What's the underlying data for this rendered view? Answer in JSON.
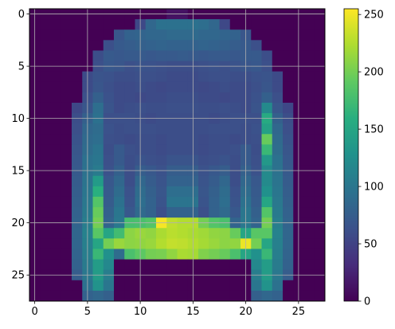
{
  "chart_data": {
    "type": "heatmap",
    "title": "",
    "xlabel": "",
    "ylabel": "",
    "colormap": "viridis",
    "grid": true,
    "x_ticks": [
      "0",
      "5",
      "10",
      "15",
      "20",
      "25"
    ],
    "y_ticks": [
      "0",
      "5",
      "10",
      "15",
      "20",
      "25"
    ],
    "colorbar": {
      "ticks": [
        "0",
        "50",
        "100",
        "150",
        "200",
        "250"
      ],
      "range": [
        0,
        255
      ]
    },
    "shape": [
      28,
      28
    ],
    "values": [
      [
        0,
        0,
        0,
        0,
        0,
        0,
        0,
        0,
        0,
        0,
        0,
        0,
        0,
        12,
        12,
        0,
        0,
        0,
        0,
        0,
        0,
        0,
        0,
        0,
        0,
        0,
        0,
        0
      ],
      [
        0,
        0,
        0,
        0,
        0,
        0,
        0,
        0,
        0,
        0,
        55,
        85,
        95,
        95,
        95,
        95,
        92,
        85,
        55,
        0,
        0,
        0,
        0,
        0,
        0,
        0,
        0,
        0
      ],
      [
        0,
        0,
        0,
        0,
        0,
        0,
        0,
        0,
        68,
        80,
        82,
        85,
        85,
        88,
        88,
        88,
        85,
        85,
        82,
        80,
        68,
        0,
        0,
        0,
        0,
        0,
        0,
        0
      ],
      [
        0,
        0,
        0,
        0,
        0,
        0,
        0,
        62,
        72,
        75,
        78,
        80,
        82,
        80,
        80,
        80,
        82,
        80,
        78,
        75,
        72,
        62,
        0,
        0,
        0,
        0,
        0,
        0
      ],
      [
        0,
        0,
        0,
        0,
        0,
        0,
        60,
        72,
        70,
        72,
        72,
        70,
        72,
        72,
        74,
        72,
        70,
        72,
        72,
        70,
        72,
        72,
        60,
        0,
        0,
        0,
        0,
        0
      ],
      [
        0,
        0,
        0,
        0,
        0,
        0,
        62,
        70,
        68,
        62,
        65,
        64,
        62,
        60,
        60,
        60,
        62,
        64,
        62,
        65,
        68,
        70,
        62,
        0,
        0,
        0,
        0,
        0
      ],
      [
        0,
        0,
        0,
        0,
        0,
        58,
        66,
        64,
        60,
        60,
        62,
        62,
        60,
        58,
        58,
        58,
        60,
        62,
        62,
        60,
        60,
        64,
        66,
        58,
        0,
        0,
        0,
        0
      ],
      [
        0,
        0,
        0,
        0,
        0,
        58,
        68,
        62,
        58,
        58,
        60,
        58,
        56,
        58,
        58,
        58,
        56,
        58,
        60,
        58,
        58,
        62,
        68,
        58,
        0,
        0,
        0,
        0
      ],
      [
        0,
        0,
        0,
        0,
        0,
        62,
        78,
        64,
        58,
        58,
        56,
        58,
        58,
        60,
        60,
        60,
        58,
        58,
        56,
        58,
        58,
        64,
        78,
        62,
        0,
        0,
        0,
        0
      ],
      [
        0,
        0,
        0,
        0,
        55,
        68,
        92,
        66,
        58,
        60,
        62,
        60,
        60,
        62,
        62,
        62,
        60,
        60,
        62,
        60,
        58,
        66,
        120,
        68,
        55,
        0,
        0,
        0
      ],
      [
        0,
        0,
        0,
        0,
        60,
        78,
        95,
        62,
        62,
        62,
        60,
        58,
        60,
        60,
        60,
        60,
        60,
        58,
        60,
        62,
        62,
        62,
        155,
        78,
        60,
        0,
        0,
        0
      ],
      [
        0,
        0,
        0,
        0,
        62,
        85,
        90,
        64,
        60,
        62,
        62,
        62,
        60,
        60,
        60,
        60,
        60,
        62,
        62,
        62,
        60,
        64,
        145,
        85,
        62,
        0,
        0,
        0
      ],
      [
        0,
        0,
        0,
        0,
        65,
        88,
        92,
        62,
        60,
        58,
        60,
        60,
        58,
        60,
        60,
        60,
        58,
        60,
        60,
        58,
        60,
        62,
        195,
        88,
        65,
        0,
        0,
        0
      ],
      [
        0,
        0,
        0,
        0,
        68,
        90,
        98,
        60,
        72,
        62,
        60,
        60,
        58,
        60,
        60,
        60,
        58,
        60,
        60,
        62,
        72,
        60,
        170,
        90,
        68,
        0,
        0,
        0
      ],
      [
        0,
        0,
        0,
        0,
        70,
        95,
        100,
        62,
        72,
        60,
        65,
        62,
        60,
        66,
        66,
        66,
        60,
        62,
        65,
        60,
        72,
        62,
        135,
        95,
        70,
        0,
        0,
        0
      ],
      [
        0,
        0,
        0,
        0,
        72,
        96,
        105,
        64,
        78,
        60,
        75,
        70,
        64,
        75,
        75,
        75,
        64,
        70,
        75,
        60,
        78,
        64,
        120,
        96,
        72,
        0,
        0,
        0
      ],
      [
        0,
        0,
        0,
        0,
        74,
        98,
        138,
        70,
        85,
        60,
        85,
        74,
        66,
        80,
        80,
        80,
        66,
        74,
        85,
        60,
        85,
        70,
        120,
        98,
        74,
        0,
        0,
        0
      ],
      [
        0,
        0,
        0,
        0,
        76,
        100,
        160,
        72,
        90,
        64,
        90,
        78,
        68,
        92,
        92,
        92,
        68,
        78,
        90,
        64,
        90,
        72,
        128,
        100,
        76,
        0,
        0,
        0
      ],
      [
        0,
        0,
        0,
        0,
        78,
        102,
        185,
        74,
        95,
        66,
        92,
        80,
        66,
        98,
        98,
        98,
        66,
        80,
        92,
        66,
        95,
        74,
        150,
        102,
        78,
        0,
        0,
        0
      ],
      [
        0,
        0,
        0,
        0,
        80,
        104,
        195,
        78,
        100,
        70,
        88,
        80,
        62,
        80,
        80,
        80,
        62,
        80,
        88,
        70,
        100,
        78,
        185,
        104,
        80,
        0,
        0,
        0
      ],
      [
        0,
        0,
        0,
        0,
        82,
        108,
        200,
        82,
        102,
        178,
        180,
        185,
        252,
        230,
        225,
        225,
        200,
        185,
        180,
        82,
        102,
        82,
        200,
        108,
        82,
        0,
        0,
        0
      ],
      [
        0,
        0,
        0,
        0,
        84,
        112,
        188,
        150,
        175,
        210,
        215,
        212,
        222,
        228,
        225,
        222,
        218,
        212,
        210,
        195,
        150,
        188,
        188,
        112,
        84,
        0,
        0,
        0
      ],
      [
        0,
        0,
        0,
        0,
        84,
        110,
        150,
        200,
        215,
        210,
        212,
        215,
        225,
        232,
        230,
        225,
        220,
        215,
        210,
        212,
        248,
        200,
        150,
        110,
        84,
        0,
        0,
        0
      ],
      [
        0,
        0,
        0,
        0,
        82,
        108,
        170,
        128,
        90,
        180,
        190,
        200,
        202,
        212,
        222,
        220,
        205,
        200,
        195,
        180,
        150,
        128,
        170,
        108,
        82,
        0,
        0,
        0
      ],
      [
        0,
        0,
        0,
        0,
        80,
        105,
        140,
        118,
        0,
        0,
        0,
        0,
        0,
        0,
        0,
        0,
        0,
        0,
        0,
        0,
        0,
        118,
        140,
        105,
        80,
        0,
        0,
        0
      ],
      [
        0,
        0,
        0,
        0,
        75,
        102,
        140,
        108,
        0,
        0,
        0,
        0,
        0,
        0,
        0,
        0,
        0,
        0,
        0,
        0,
        0,
        108,
        140,
        102,
        75,
        0,
        0,
        0
      ],
      [
        0,
        0,
        0,
        0,
        0,
        95,
        130,
        100,
        0,
        0,
        0,
        0,
        0,
        0,
        0,
        0,
        0,
        0,
        0,
        0,
        0,
        100,
        130,
        95,
        0,
        0,
        0,
        0
      ],
      [
        0,
        0,
        0,
        0,
        0,
        80,
        85,
        78,
        0,
        0,
        0,
        0,
        0,
        0,
        0,
        0,
        0,
        0,
        0,
        0,
        0,
        78,
        85,
        80,
        0,
        0,
        0,
        0
      ]
    ]
  }
}
